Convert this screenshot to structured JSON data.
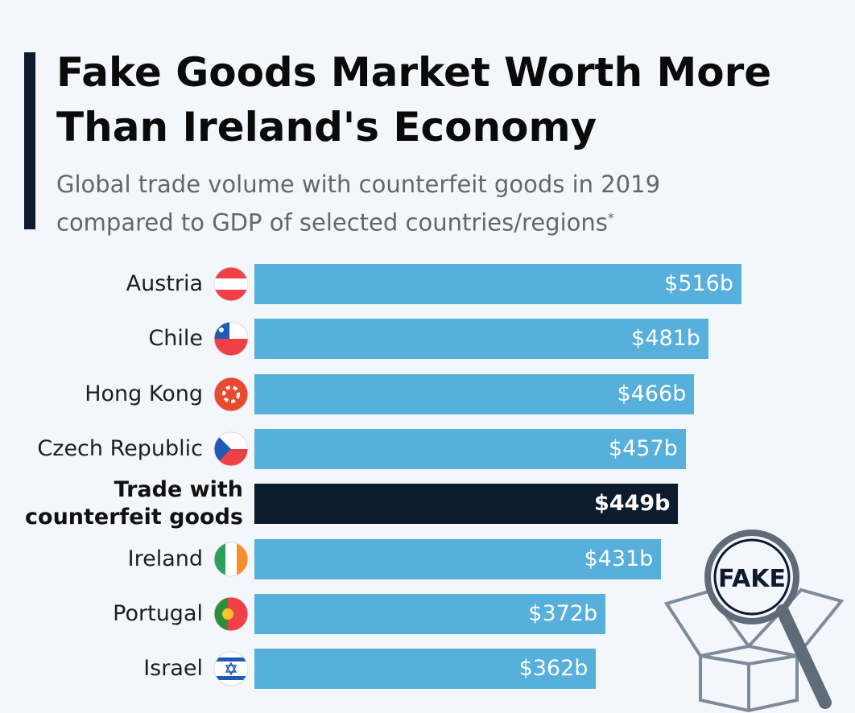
{
  "chart_data": {
    "type": "bar",
    "orientation": "horizontal",
    "title": "Fake Goods Market Worth More Than Ireland's Economy",
    "subtitle": "Global trade volume with counterfeit goods in 2019 compared to GDP of selected countries/regions",
    "footnote_marker": "*",
    "categories": [
      "Austria",
      "Chile",
      "Hong Kong",
      "Czech Republic",
      "Trade with counterfeit goods",
      "Ireland",
      "Portugal",
      "Israel"
    ],
    "values": [
      516,
      481,
      466,
      457,
      449,
      431,
      372,
      362
    ],
    "value_labels": [
      "$516b",
      "$481b",
      "$466b",
      "$457b",
      "$449b",
      "$431b",
      "$372b",
      "$362b"
    ],
    "color": "#57afdc",
    "colors": [
      "#57afdc",
      "#57afdc",
      "#57afdc",
      "#57afdc",
      "#0d1b2e",
      "#57afdc",
      "#57afdc",
      "#57afdc"
    ],
    "illustration_text": "FAKE"
  }
}
